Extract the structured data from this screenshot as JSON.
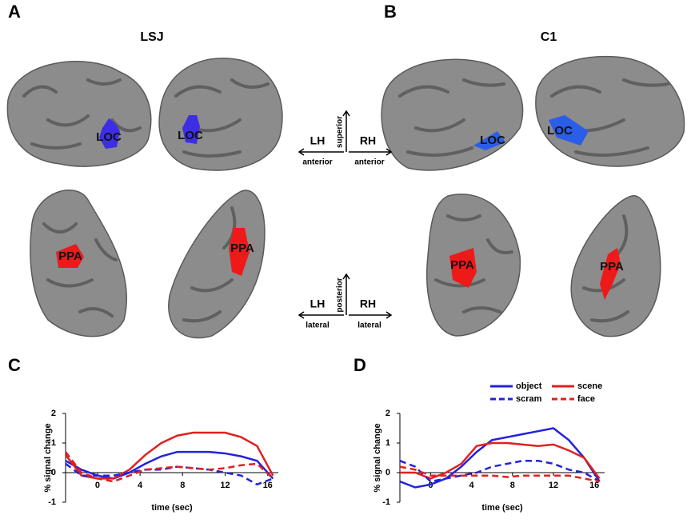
{
  "figure": {
    "panels": [
      "A",
      "B",
      "C",
      "D"
    ],
    "subjects": [
      "LSJ",
      "C1"
    ],
    "loc": [
      "LOC",
      "LOC",
      "LOC",
      "LOC"
    ],
    "ppa": [
      "PPA",
      "PPA",
      "PPA",
      "PPA"
    ],
    "hemis": [
      "LH",
      "RH",
      "LH",
      "RH"
    ],
    "orient_top": {
      "vertical": "superior",
      "left": "anterior",
      "right": "anterior"
    },
    "orient_bottom": {
      "vertical": "posterior",
      "left": "lateral",
      "right": "lateral"
    }
  },
  "chart_data": [
    {
      "type": "line",
      "x_label": "time (sec)",
      "y_label": "% signal change",
      "x": [
        -3,
        -1.5,
        0,
        1.5,
        3,
        4.5,
        6,
        7.5,
        9,
        10.5,
        12,
        13.5,
        15,
        16.5
      ],
      "xlim": [
        -3,
        17
      ],
      "xticks": [
        0,
        4,
        8,
        12,
        16
      ],
      "ylim": [
        -1,
        2
      ],
      "yticks": [
        -1,
        0,
        1,
        2
      ],
      "legend": false,
      "series": [
        {
          "color": "#2222dd",
          "dashed": false,
          "values": [
            0.4,
            0.1,
            -0.1,
            -0.2,
            0,
            0.3,
            0.55,
            0.7,
            0.7,
            0.7,
            0.65,
            0.55,
            0.4,
            -0.2
          ]
        },
        {
          "color": "#e02020",
          "dashed": false,
          "values": [
            0.6,
            -0.1,
            -0.2,
            -0.2,
            0.1,
            0.6,
            1.0,
            1.25,
            1.35,
            1.35,
            1.35,
            1.2,
            0.9,
            -0.1
          ]
        },
        {
          "color": "#2222dd",
          "dashed": true,
          "values": [
            0.3,
            -0.1,
            -0.1,
            -0.1,
            0,
            0.1,
            0.1,
            0.2,
            0.15,
            0.1,
            0,
            -0.1,
            -0.4,
            -0.2
          ]
        },
        {
          "color": "#e02020",
          "dashed": true,
          "values": [
            0.7,
            0,
            -0.2,
            -0.3,
            -0.1,
            0.1,
            0.15,
            0.2,
            0.15,
            0.1,
            0.15,
            0.25,
            0.3,
            -0.2
          ]
        }
      ]
    },
    {
      "type": "line",
      "x_label": "time (sec)",
      "y_label": "% signal change",
      "x": [
        -3,
        -1.5,
        0,
        1.5,
        3,
        4.5,
        6,
        7.5,
        9,
        10.5,
        12,
        13.5,
        15,
        16.5
      ],
      "xlim": [
        -3,
        17
      ],
      "xticks": [
        0,
        4,
        8,
        12,
        16
      ],
      "ylim": [
        -1,
        2
      ],
      "yticks": [
        -1,
        0,
        1,
        2
      ],
      "legend": true,
      "series": [
        {
          "name": "object",
          "color": "#2222dd",
          "dashed": false,
          "values": [
            -0.3,
            -0.5,
            -0.4,
            -0.2,
            0.2,
            0.7,
            1.1,
            1.2,
            1.3,
            1.4,
            1.5,
            1.1,
            0.5,
            -0.3
          ]
        },
        {
          "name": "scene",
          "color": "#e02020",
          "dashed": false,
          "values": [
            0,
            0,
            -0.2,
            0,
            0.3,
            0.9,
            1.0,
            1.0,
            0.95,
            0.9,
            0.95,
            0.75,
            0.5,
            -0.2
          ]
        },
        {
          "name": "scram",
          "color": "#2222dd",
          "dashed": true,
          "values": [
            0.4,
            0.2,
            -0.3,
            -0.2,
            -0.1,
            0,
            0.2,
            0.3,
            0.4,
            0.4,
            0.3,
            0.1,
            0,
            -0.3
          ]
        },
        {
          "name": "face",
          "color": "#e02020",
          "dashed": true,
          "values": [
            0.2,
            0.1,
            -0.1,
            -0.1,
            -0.1,
            -0.1,
            -0.1,
            -0.15,
            -0.1,
            -0.1,
            -0.1,
            -0.1,
            -0.2,
            -0.3
          ]
        }
      ]
    }
  ]
}
